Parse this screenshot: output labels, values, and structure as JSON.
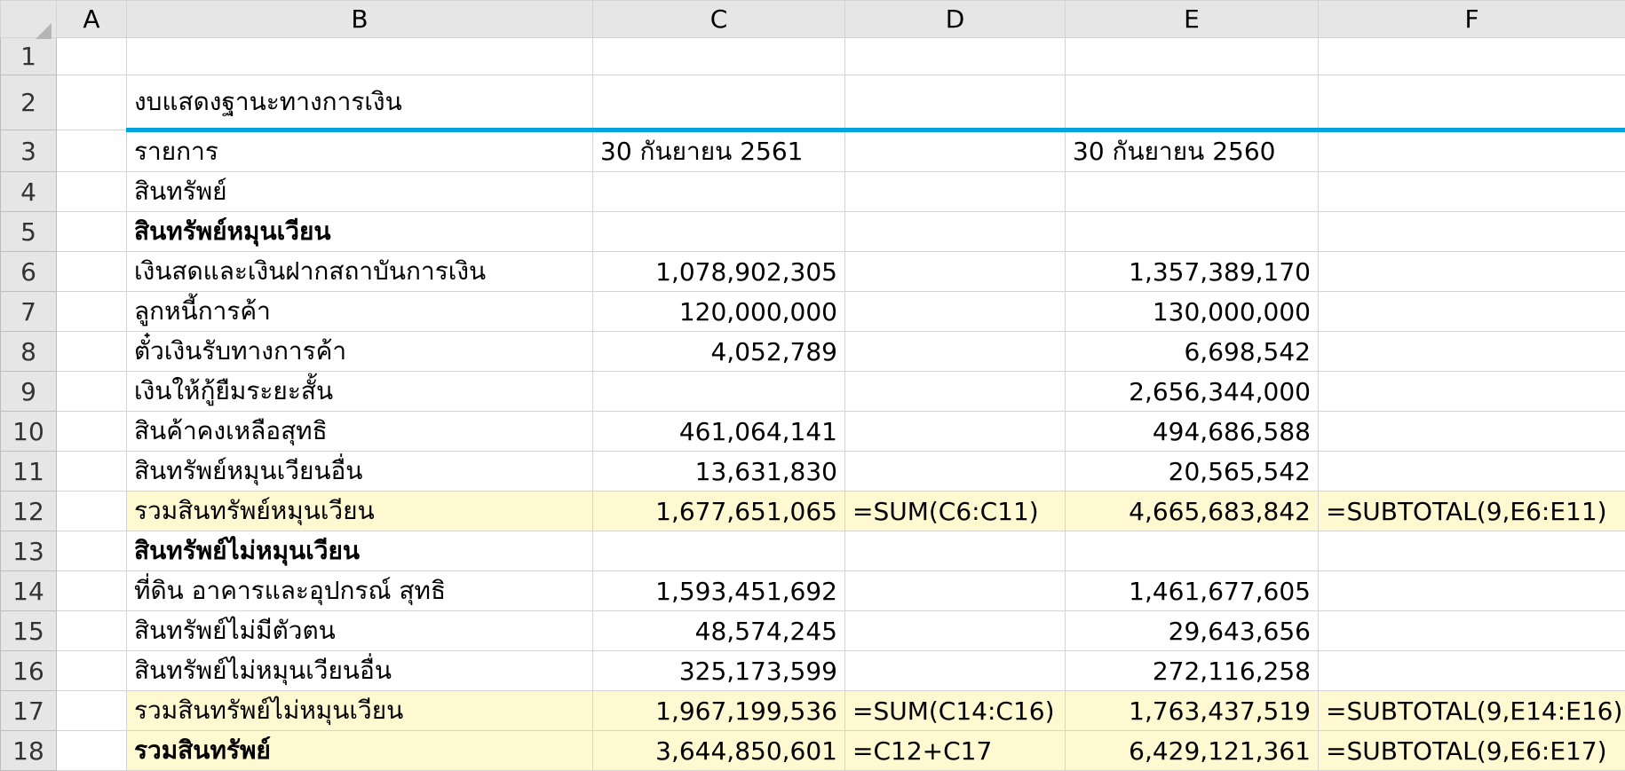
{
  "columns": [
    "A",
    "B",
    "C",
    "D",
    "E",
    "F"
  ],
  "rows": [
    {
      "n": "1",
      "b": "",
      "c": "",
      "d": "",
      "e": "",
      "f": ""
    },
    {
      "n": "2",
      "b": "งบแสดงฐานะทางการเงิน",
      "c": "",
      "d": "",
      "e": "",
      "f": ""
    },
    {
      "n": "3",
      "b": "รายการ",
      "c": "30 กันยายน 2561",
      "d": "",
      "e": "30 กันยายน 2560",
      "f": ""
    },
    {
      "n": "4",
      "b": "สินทรัพย์",
      "c": "",
      "d": "",
      "e": "",
      "f": ""
    },
    {
      "n": "5",
      "b": "สินทรัพย์หมุนเวียน",
      "c": "",
      "d": "",
      "e": "",
      "f": ""
    },
    {
      "n": "6",
      "b": "เงินสดและเงินฝากสถาบันการเงิน",
      "c": "1,078,902,305",
      "d": "",
      "e": "1,357,389,170",
      "f": ""
    },
    {
      "n": "7",
      "b": "ลูกหนี้การค้า",
      "c": "120,000,000",
      "d": "",
      "e": "130,000,000",
      "f": ""
    },
    {
      "n": "8",
      "b": "ตั๋วเงินรับทางการค้า",
      "c": "4,052,789",
      "d": "",
      "e": "6,698,542",
      "f": ""
    },
    {
      "n": "9",
      "b": "เงินให้กู้ยืมระยะสั้น",
      "c": "",
      "d": "",
      "e": "2,656,344,000",
      "f": ""
    },
    {
      "n": "10",
      "b": "สินค้าคงเหลือสุทธิ",
      "c": "461,064,141",
      "d": "",
      "e": "494,686,588",
      "f": ""
    },
    {
      "n": "11",
      "b": "สินทรัพย์หมุนเวียนอื่น",
      "c": "13,631,830",
      "d": "",
      "e": "20,565,542",
      "f": ""
    },
    {
      "n": "12",
      "b": "รวมสินทรัพย์หมุนเวียน",
      "c": "1,677,651,065",
      "d": "=SUM(C6:C11)",
      "e": "4,665,683,842",
      "f": "=SUBTOTAL(9,E6:E11)"
    },
    {
      "n": "13",
      "b": "สินทรัพย์ไม่หมุนเวียน",
      "c": "",
      "d": "",
      "e": "",
      "f": ""
    },
    {
      "n": "14",
      "b": "ที่ดิน อาคารและอุปกรณ์ สุทธิ",
      "c": "1,593,451,692",
      "d": "",
      "e": "1,461,677,605",
      "f": ""
    },
    {
      "n": "15",
      "b": "สินทรัพย์ไม่มีตัวตน",
      "c": "48,574,245",
      "d": "",
      "e": "29,643,656",
      "f": ""
    },
    {
      "n": "16",
      "b": "สินทรัพย์ไม่หมุนเวียนอื่น",
      "c": "325,173,599",
      "d": "",
      "e": "272,116,258",
      "f": ""
    },
    {
      "n": "17",
      "b": "รวมสินทรัพย์ไม่หมุนเวียน",
      "c": "1,967,199,536",
      "d": "=SUM(C14:C16)",
      "e": "1,763,437,519",
      "f": "=SUBTOTAL(9,E14:E16)"
    },
    {
      "n": "18",
      "b": "รวมสินทรัพย์",
      "c": "3,644,850,601",
      "d": "=C12+C17",
      "e": "6,429,121,361",
      "f": "=SUBTOTAL(9,E6:E17)"
    }
  ]
}
